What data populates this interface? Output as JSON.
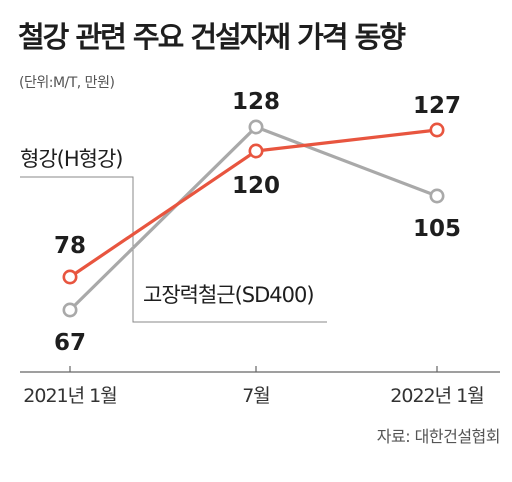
{
  "title": "철강 관련 주요 건설자재 가격 동향",
  "unit": "(단위:M/T, 만원)",
  "source": "자료: 대한건설협회",
  "colors": {
    "h_beam": "#e8553f",
    "rebar": "#a9a9a9",
    "axis": "#666666",
    "leader": "#888888"
  },
  "chart_data": {
    "type": "line",
    "title": "철강 관련 주요 건설자재 가격 동향",
    "ylabel": "",
    "xlabel": "",
    "categories": [
      "2021년 1월",
      "7월",
      "2022년 1월"
    ],
    "ylim": [
      60,
      132
    ],
    "grid": false,
    "series": [
      {
        "name": "형강(H형강)",
        "values": [
          78,
          120,
          127
        ],
        "labels": [
          "78",
          "120",
          "127"
        ],
        "color": "#e8553f"
      },
      {
        "name": "고장력철근(SD400)",
        "values": [
          67,
          128,
          105
        ],
        "labels": [
          "67",
          "128",
          "105"
        ],
        "color": "#a9a9a9"
      }
    ]
  }
}
